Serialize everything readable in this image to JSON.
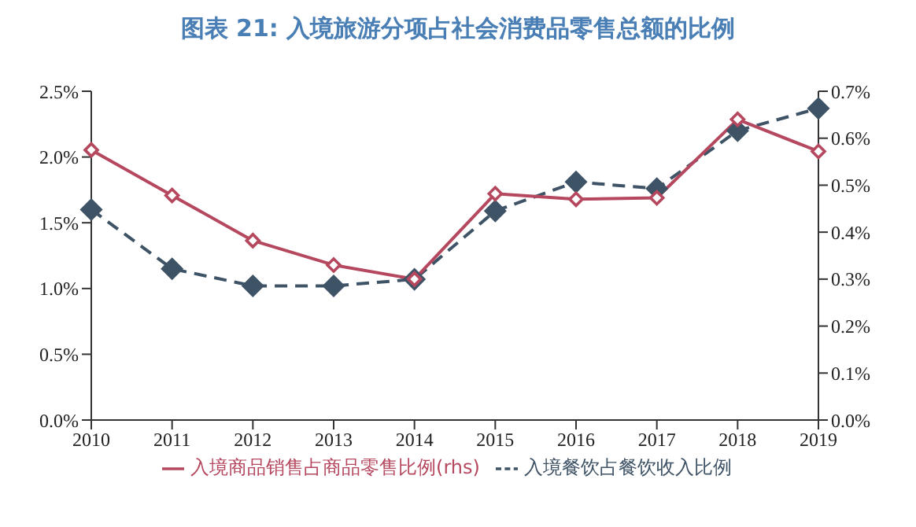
{
  "chart_data": {
    "type": "line",
    "title": "图表 21: 入境旅游分项占社会消费品零售总额的比例",
    "categories": [
      "2010",
      "2011",
      "2012",
      "2013",
      "2014",
      "2015",
      "2016",
      "2017",
      "2018",
      "2019"
    ],
    "series": [
      {
        "name": "入境餐饮占餐饮收入比例",
        "color": "#3f5366",
        "line_style": "dashed",
        "values": [
          1.6,
          1.15,
          1.02,
          1.02,
          1.07,
          1.59,
          1.81,
          1.76,
          2.2,
          2.37
        ]
      },
      {
        "name": "入境商品销售占商品零售比例(rhs)",
        "color": "#b5485f",
        "line_style": "solid",
        "axis": "y2",
        "values": [
          0.575,
          0.478,
          0.382,
          0.33,
          0.3,
          0.482,
          0.47,
          0.473,
          0.64,
          0.572
        ]
      }
    ],
    "ylim": [
      0,
      2.5
    ],
    "yticks": [
      {
        "value": 0,
        "label": "0.0%"
      },
      {
        "value": 0.5,
        "label": "0.5%"
      },
      {
        "value": 1,
        "label": "1.0%"
      },
      {
        "value": 1.5,
        "label": "1.5%"
      },
      {
        "value": 2,
        "label": "2.0%"
      },
      {
        "value": 2.5,
        "label": "2.5%"
      }
    ],
    "y2lim": [
      0,
      0.7
    ],
    "y2ticks": [
      {
        "value": 0,
        "label": "0.0%"
      },
      {
        "value": 0.1,
        "label": "0.1%"
      },
      {
        "value": 0.2,
        "label": "0.2%"
      },
      {
        "value": 0.3,
        "label": "0.3%"
      },
      {
        "value": 0.4,
        "label": "0.4%"
      },
      {
        "value": 0.5,
        "label": "0.5%"
      },
      {
        "value": 0.6,
        "label": "0.6%"
      },
      {
        "value": 0.7,
        "label": "0.7%"
      }
    ],
    "marker": "diamond",
    "grid": false,
    "legend": "bottom"
  }
}
